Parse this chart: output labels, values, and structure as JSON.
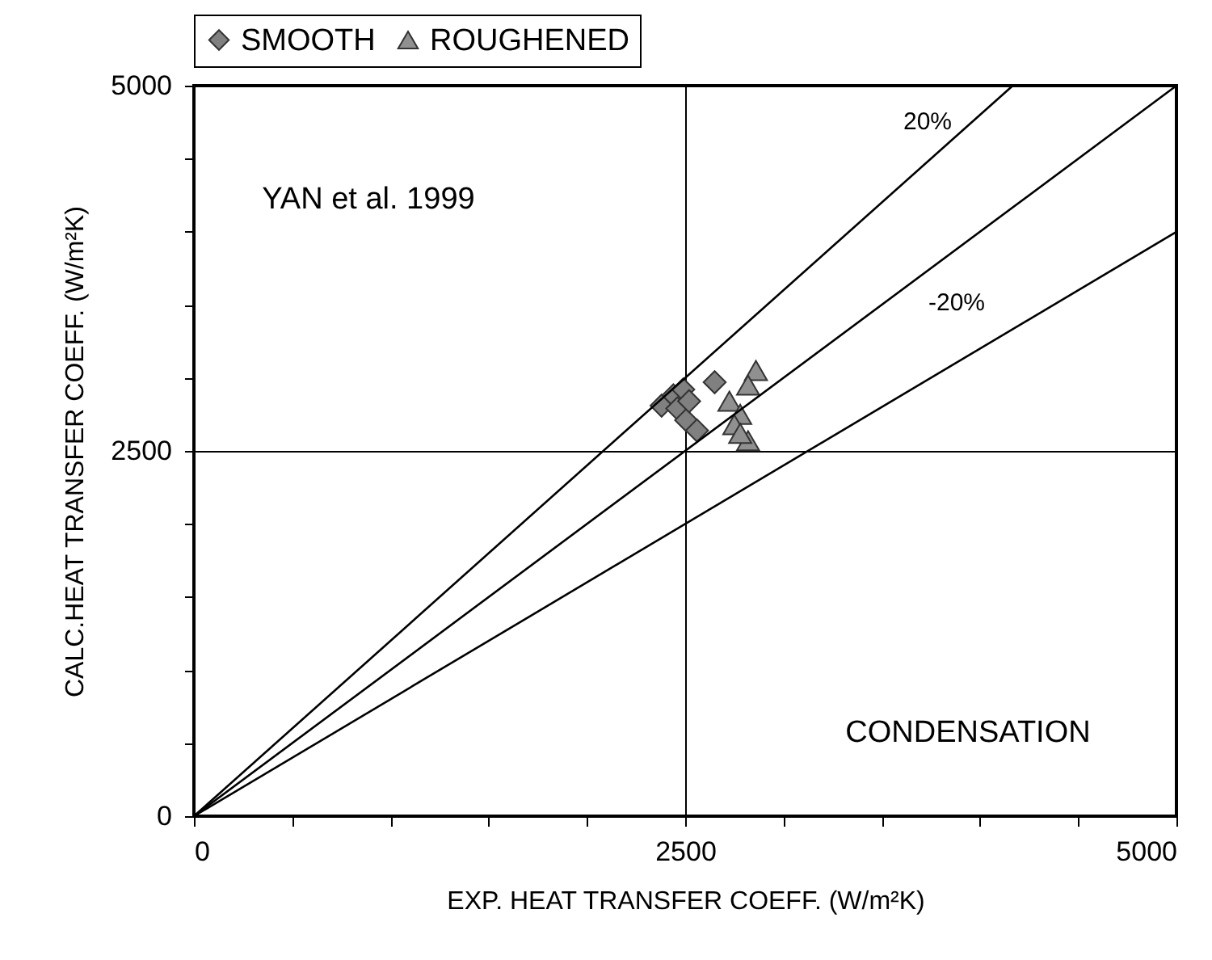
{
  "chart_data": {
    "type": "scatter",
    "xlabel": "EXP. HEAT TRANSFER COEFF. (W/m²K)",
    "ylabel": "CALC.HEAT TRANSFER COEFF. (W/m²K)",
    "xlim": [
      0,
      5000
    ],
    "ylim": [
      0,
      5000
    ],
    "xticks": [
      0,
      {
        "value": 500,
        "label": null
      },
      {
        "value": 1000,
        "label": null
      },
      {
        "value": 1500,
        "label": null
      },
      {
        "value": 2000,
        "label": null
      },
      2500,
      {
        "value": 3000,
        "label": null
      },
      {
        "value": 3500,
        "label": null
      },
      {
        "value": 4000,
        "label": null
      },
      {
        "value": 4500,
        "label": null
      },
      5000
    ],
    "yticks": [
      0,
      {
        "value": 500,
        "label": null
      },
      {
        "value": 1000,
        "label": null
      },
      {
        "value": 1500,
        "label": null
      },
      {
        "value": 2000,
        "label": null
      },
      2500,
      {
        "value": 3000,
        "label": null
      },
      {
        "value": 3500,
        "label": null
      },
      {
        "value": 4000,
        "label": null
      },
      {
        "value": 4500,
        "label": null
      },
      5000
    ],
    "grid": true,
    "legend": "top",
    "series": [
      {
        "name": "SMOOTH",
        "marker": "diamond",
        "color": "#808080",
        "x": [
          2380,
          2440,
          2490,
          2460,
          2505,
          2560,
          2650,
          2520
        ],
        "values": [
          2810,
          2880,
          2920,
          2790,
          2710,
          2640,
          2970,
          2840
        ]
      },
      {
        "name": "ROUGHENED",
        "marker": "triangle",
        "color": "#909090",
        "x": [
          2860,
          2820,
          2725,
          2780,
          2750,
          2820,
          2780
        ],
        "values": [
          3050,
          2950,
          2840,
          2750,
          2680,
          2570,
          2620
        ]
      },
      {
        "type": "line",
        "color": "#000000",
        "x": [
          0,
          4167
        ],
        "values": [
          0,
          5000
        ]
      },
      {
        "type": "line",
        "color": "#000000",
        "x": [
          0,
          5000
        ],
        "values": [
          0,
          5000
        ]
      },
      {
        "type": "line",
        "color": "#000000",
        "x": [
          0,
          5000
        ],
        "values": [
          0,
          4000
        ]
      }
    ],
    "annotations": [
      "20%",
      "-20%",
      "YAN et al. 1999",
      "CONDENSATION"
    ]
  }
}
